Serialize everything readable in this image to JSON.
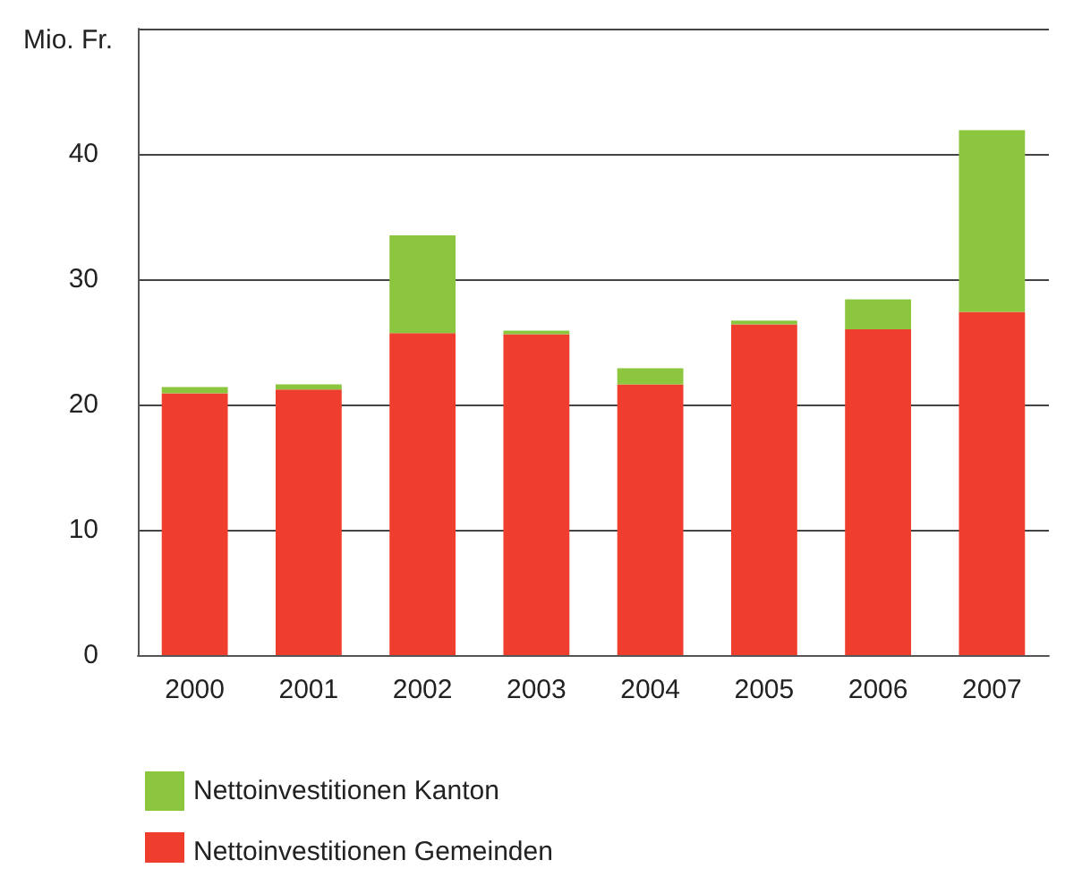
{
  "chart_data": {
    "type": "bar",
    "ylabel": "Mio. Fr.",
    "categories": [
      "2000",
      "2001",
      "2002",
      "2003",
      "2004",
      "2005",
      "2006",
      "2007"
    ],
    "series": [
      {
        "name": "Nettoinvestitionen Gemeinden",
        "color": "#ef3e2e",
        "values": [
          20.9,
          21.2,
          25.7,
          25.6,
          21.6,
          26.4,
          26.0,
          27.4
        ]
      },
      {
        "name": "Nettoinvestitionen Kanton",
        "color": "#8cc63e",
        "values": [
          0.5,
          0.4,
          7.8,
          0.3,
          1.3,
          0.3,
          2.4,
          14.5
        ]
      }
    ],
    "stacked": true,
    "ylim": [
      0,
      50
    ],
    "yticks": [
      0,
      10,
      20,
      30,
      40
    ],
    "grid": "y",
    "legend": "bottom left"
  }
}
